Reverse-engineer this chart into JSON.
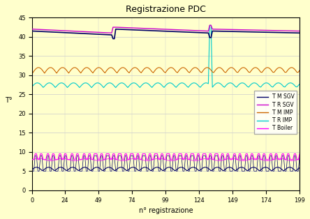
{
  "title": "Registrazione PDC",
  "xlabel": "n° registrazione",
  "ylabel": "T°",
  "ylim": [
    0,
    45
  ],
  "yticks": [
    0,
    5,
    10,
    15,
    20,
    25,
    30,
    35,
    40,
    45
  ],
  "bg_color": "#ffffcc",
  "grid_color": "#cccccc",
  "n_points": 200,
  "legend_labels": [
    "T M SGV",
    "T R SGV",
    "T M IMP",
    "T R IMP",
    "T Boiler"
  ],
  "colors": {
    "TM_SGV": "#000066",
    "TR_SGV": "#cc00cc",
    "TM_IMP": "#cc6600",
    "TR_IMP": "#00cccc",
    "T_Boiler": "#ff00ff"
  }
}
